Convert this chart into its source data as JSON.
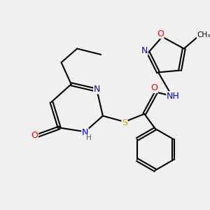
{
  "background_color": "#f0f0f0",
  "bond_color": "#000000",
  "atom_colors": {
    "N": "#0000ff",
    "O": "#ff0000",
    "S": "#ccaa00",
    "C": "#000000",
    "H": "#555555"
  },
  "title": "",
  "figsize": [
    3.0,
    3.0
  ],
  "dpi": 100
}
